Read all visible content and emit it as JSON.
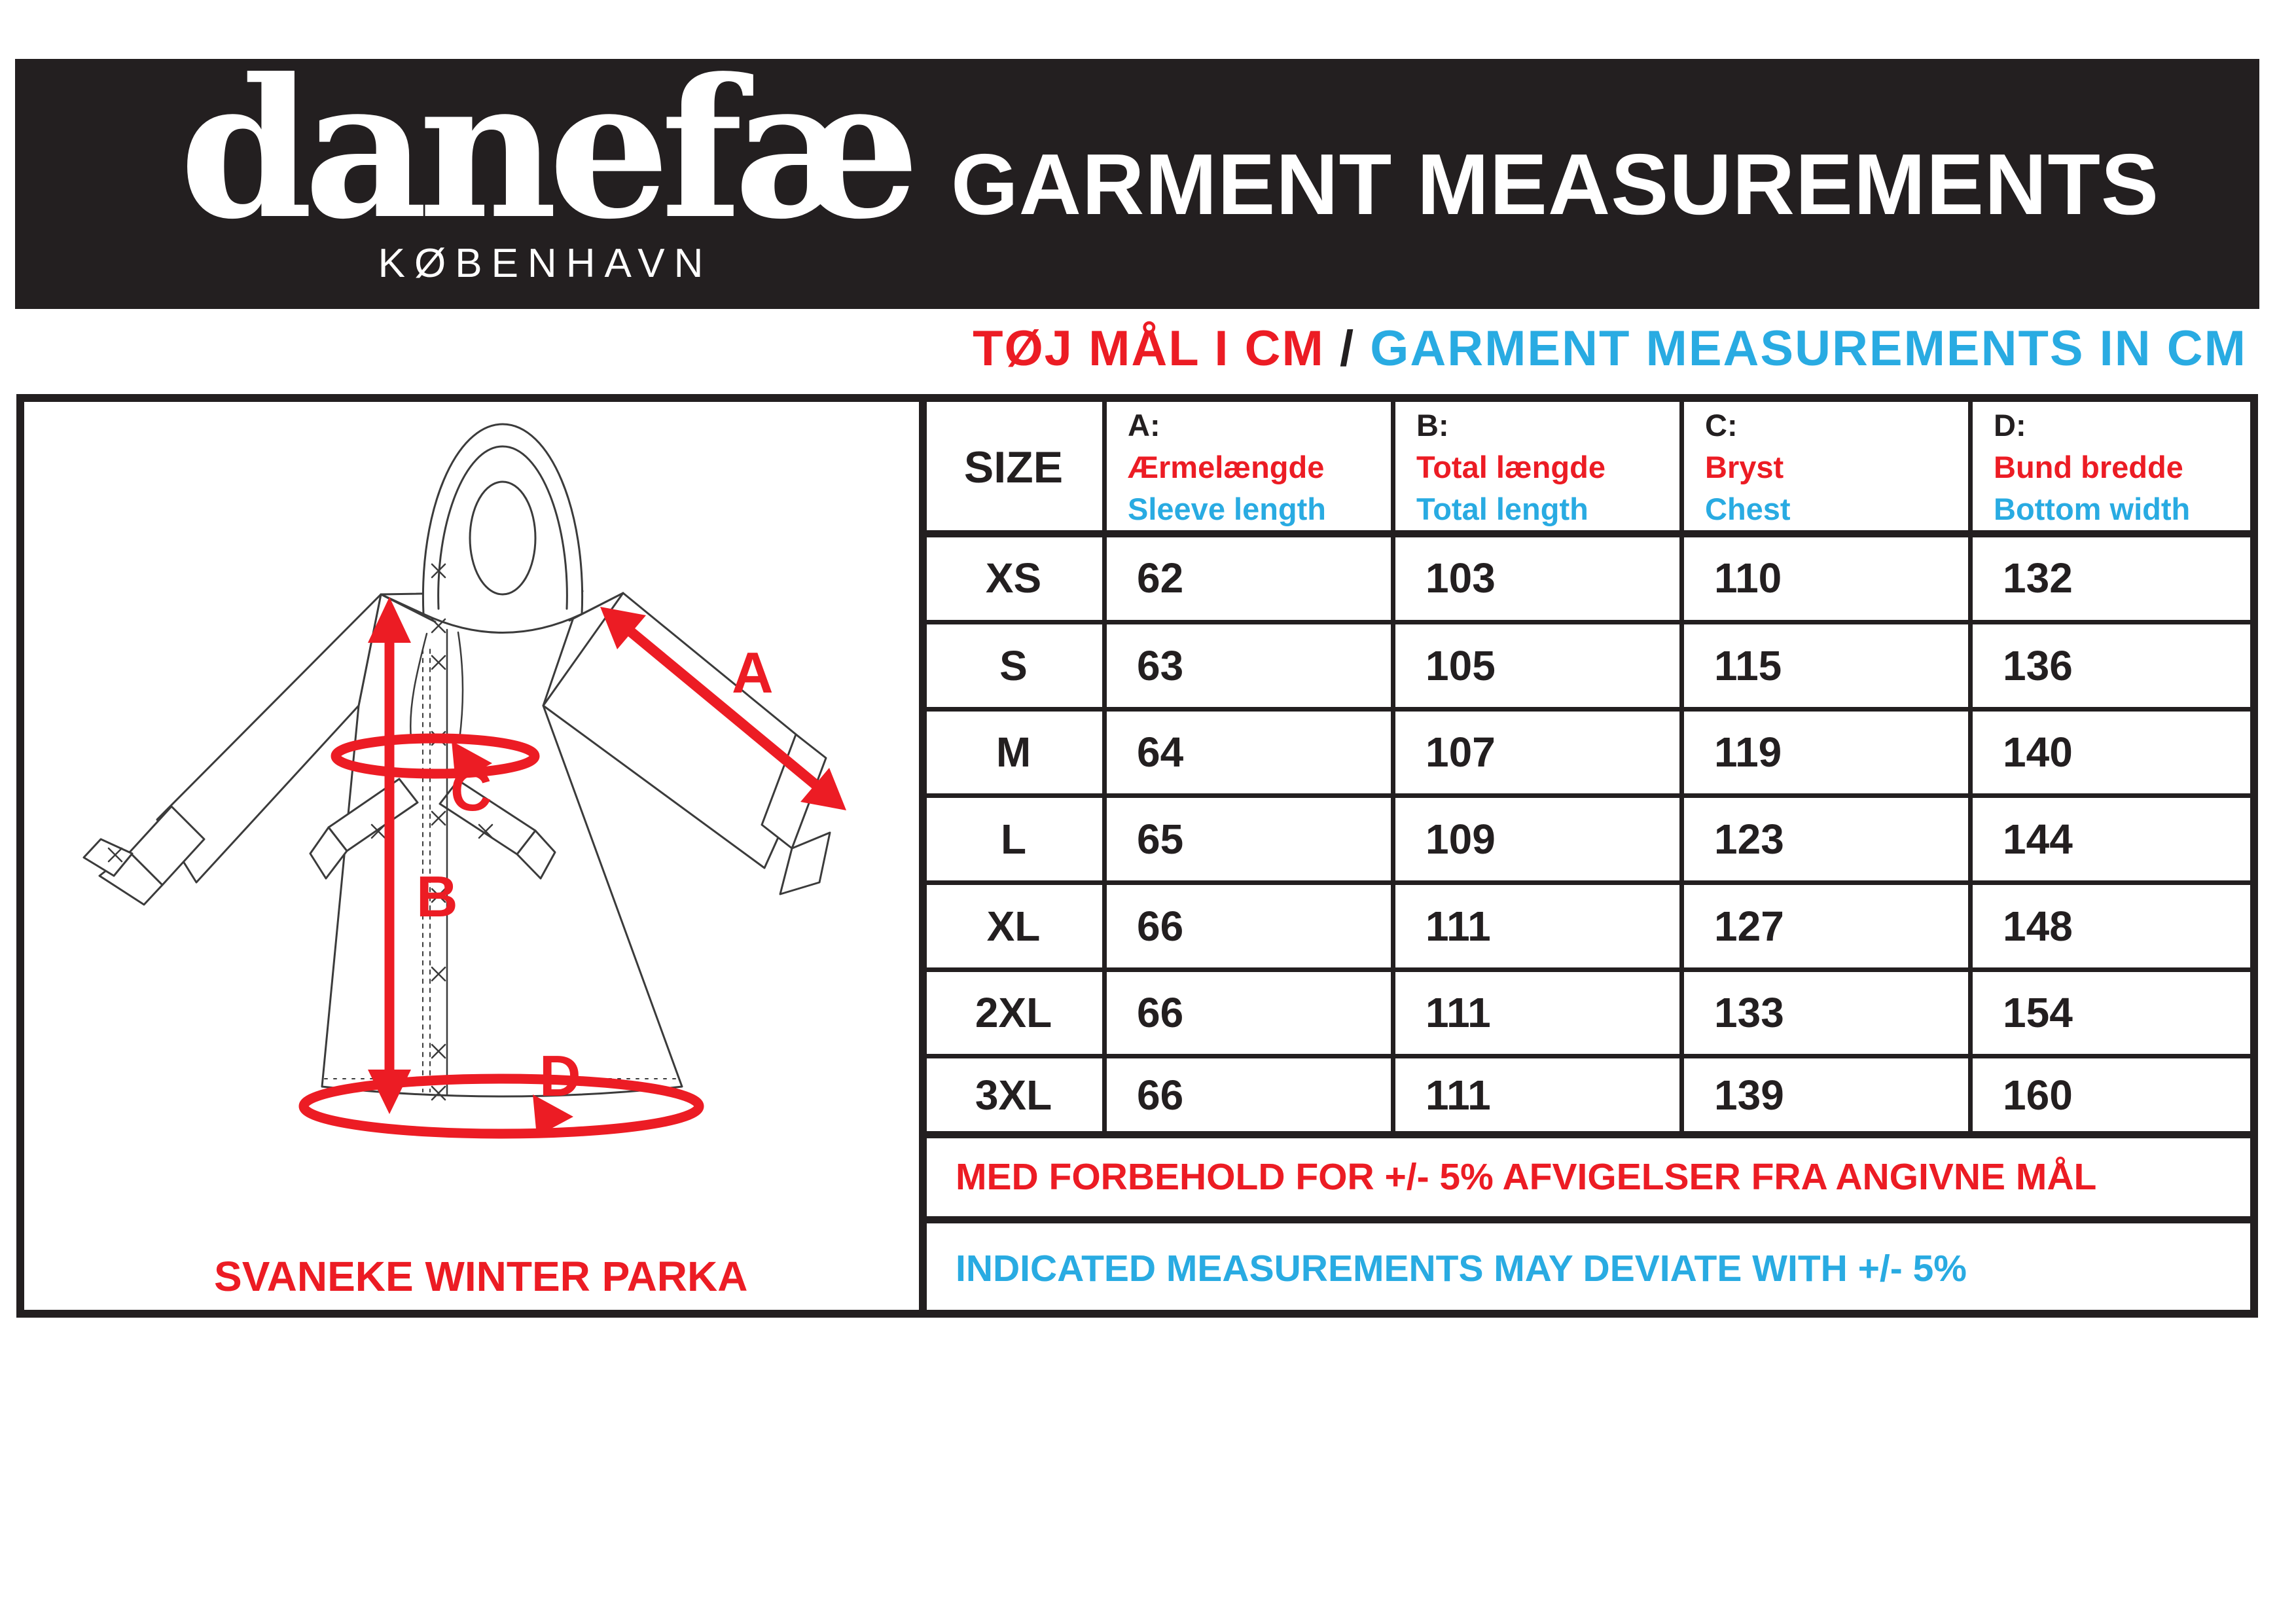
{
  "brand": {
    "logo": "danefæ",
    "city": "KØBENHAVN"
  },
  "title": "GARMENT MEASUREMENTS",
  "subtitle": {
    "da": "TØJ MÅL I CM",
    "sep": " / ",
    "en": "GARMENT MEASUREMENTS IN CM"
  },
  "panel": {
    "product": "SVANEKE WINTER PARKA",
    "labels": {
      "a": "A",
      "b": "B",
      "c": "C",
      "d": "D"
    }
  },
  "table": {
    "size_header": "SIZE",
    "columns": [
      {
        "letter": "A:",
        "da": "Ærmelængde",
        "en": "Sleeve length"
      },
      {
        "letter": "B:",
        "da": "Total længde",
        "en": "Total length"
      },
      {
        "letter": "C:",
        "da": "Bryst",
        "en": "Chest"
      },
      {
        "letter": "D:",
        "da": "Bund bredde",
        "en": "Bottom width"
      }
    ],
    "rows": [
      {
        "size": "XS",
        "values": [
          "62",
          "103",
          "110",
          "132"
        ]
      },
      {
        "size": "S",
        "values": [
          "63",
          "105",
          "115",
          "136"
        ]
      },
      {
        "size": "M",
        "values": [
          "64",
          "107",
          "119",
          "140"
        ]
      },
      {
        "size": "L",
        "values": [
          "65",
          "109",
          "123",
          "144"
        ]
      },
      {
        "size": "XL",
        "values": [
          "66",
          "111",
          "127",
          "148"
        ]
      },
      {
        "size": "2XL",
        "values": [
          "66",
          "111",
          "133",
          "154"
        ]
      },
      {
        "size": "3XL",
        "values": [
          "66",
          "111",
          "139",
          "160"
        ]
      }
    ]
  },
  "notes": {
    "da": "MED FORBEHOLD FOR +/- 5% AFVIGELSER FRA ANGIVNE MÅL",
    "en": "INDICATED MEASUREMENTS MAY DEVIATE WITH +/- 5%"
  },
  "colors": {
    "red": "#EC1C24",
    "blue": "#29ABE2",
    "black": "#231F20"
  }
}
